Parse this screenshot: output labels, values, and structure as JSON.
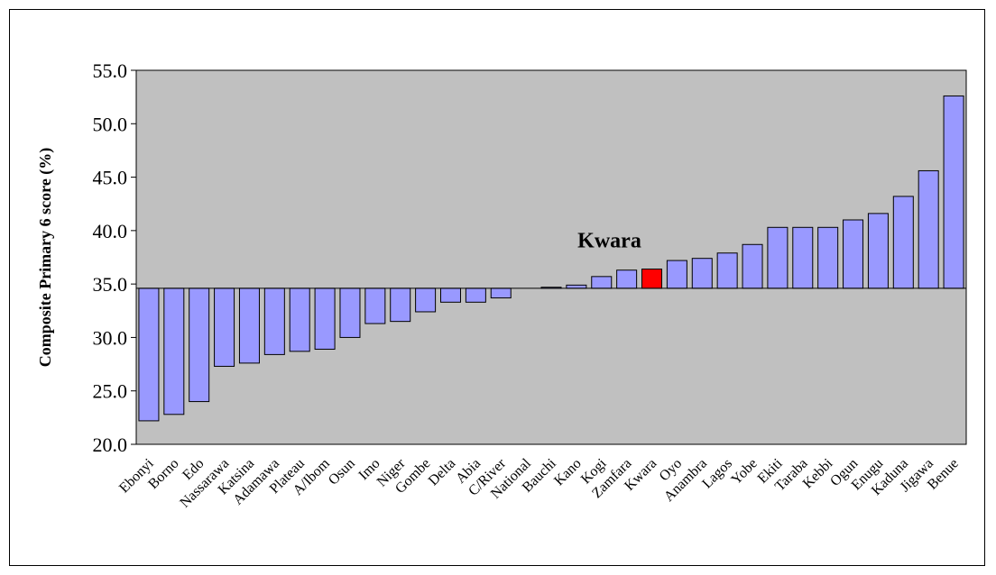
{
  "chart_data": {
    "type": "bar",
    "title": "",
    "xlabel": "",
    "ylabel": "Composite Primary 6 score (%)",
    "ylim": [
      20,
      55
    ],
    "baseline": 34.6,
    "yticks": [
      "20.0",
      "25.0",
      "30.0",
      "35.0",
      "40.0",
      "45.0",
      "50.0",
      "55.0"
    ],
    "ytick_values": [
      20,
      25,
      30,
      35,
      40,
      45,
      50,
      55
    ],
    "grid": false,
    "legend": "none",
    "categories": [
      "Ebonyi",
      "Borno",
      "Edo",
      "Nassarawa",
      "Katsina",
      "Adamawa",
      "Plateau",
      "A/Ibom",
      "Osun",
      "Imo",
      "Niger",
      "Gombe",
      "Delta",
      "Abia",
      "C/River",
      "National",
      "Bauchi",
      "Kano",
      "Kogi",
      "Zamfara",
      "Kwara",
      "Oyo",
      "Anambra",
      "Lagos",
      "Yobe",
      "Ekiti",
      "Taraba",
      "Kebbi",
      "Ogun",
      "Enugu",
      "Kaduna",
      "Jigawa",
      "Benue"
    ],
    "values": [
      22.2,
      22.8,
      24.0,
      27.3,
      27.6,
      28.4,
      28.7,
      28.9,
      30.0,
      31.3,
      31.5,
      32.4,
      33.3,
      33.3,
      33.7,
      34.6,
      34.7,
      34.9,
      35.7,
      36.3,
      36.4,
      37.2,
      37.4,
      37.9,
      38.7,
      40.3,
      40.3,
      40.3,
      41.0,
      41.6,
      43.2,
      45.6,
      52.6
    ],
    "highlight": "Kwara",
    "annotation": "Kwara",
    "colors": {
      "plot_bg": "#c0c0c0",
      "bar": "#9999ff",
      "highlight": "#ff0000",
      "bar_edge": "#000000"
    }
  }
}
